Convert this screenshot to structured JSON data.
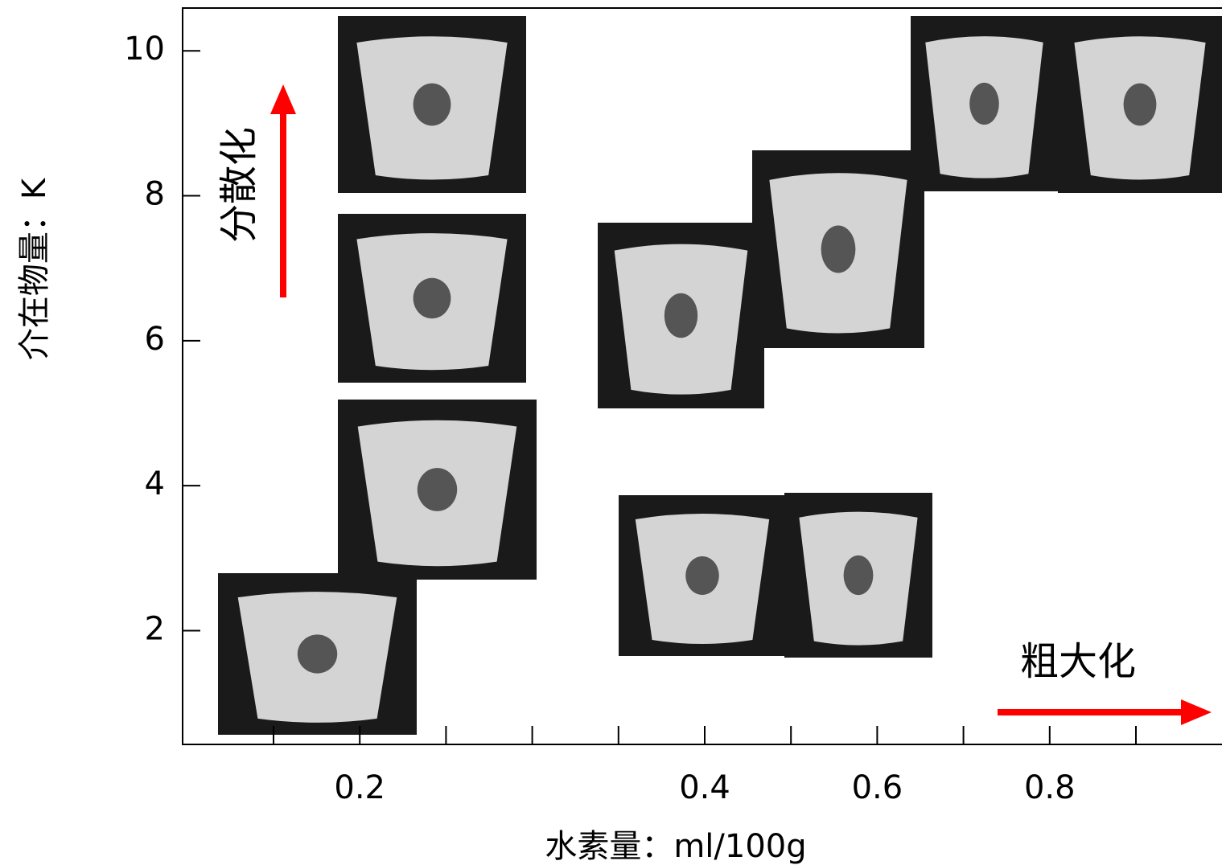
{
  "chart_data": {
    "type": "scatter",
    "x_label": "水素量：ml/100g",
    "y_label": "介在物量：K",
    "annotations": [
      "分散化",
      "粗大化"
    ],
    "categories": [
      null,
      "0.2",
      null,
      null,
      null,
      "0.4",
      null,
      "0.6",
      null,
      "0.8",
      null
    ],
    "ylim": [
      0.43,
      10.59
    ],
    "yticks": [
      2,
      4,
      6,
      8,
      10
    ]
  }
}
